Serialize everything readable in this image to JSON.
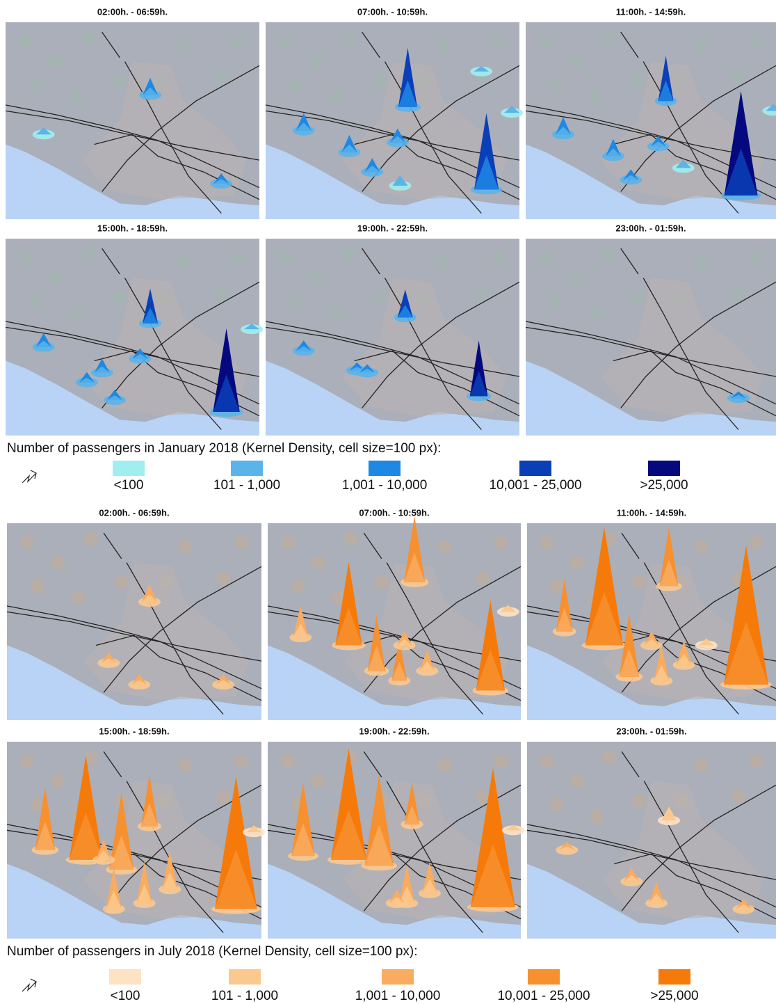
{
  "sections": [
    {
      "panels": [
        "02:00h. - 06:59h.",
        "07:00h. - 10:59h.",
        "11:00h. - 14:59h.",
        "15:00h. - 18:59h.",
        "19:00h. - 22:59h.",
        "23:00h. - 01:59h."
      ],
      "legend": {
        "title": "Number of passengers in January 2018 (Kernel Density, cell size=100 px):",
        "items": [
          {
            "label": "<100",
            "color": "#a0eef0"
          },
          {
            "label": "101 - 1,000",
            "color": "#5ab4ea"
          },
          {
            "label": "1,001 - 10,000",
            "color": "#1e88e5"
          },
          {
            "label": "10,001 - 25,000",
            "color": "#0b3fb8"
          },
          {
            "label": ">25,000",
            "color": "#06097e"
          }
        ]
      }
    },
    {
      "panels": [
        "02:00h. - 06:59h.",
        "07:00h. - 10:59h.",
        "11:00h. - 14:59h.",
        "15:00h. - 18:59h.",
        "19:00h. - 22:59h.",
        "23:00h. - 01:59h."
      ],
      "legend": {
        "title": "Number of passengers in July 2018 (Kernel Density, cell size=100 px):",
        "items": [
          {
            "label": "<100",
            "color": "#fde3c4"
          },
          {
            "label": "101 - 1,000",
            "color": "#fbc98f"
          },
          {
            "label": "1,001 - 10,000",
            "color": "#f9ab60"
          },
          {
            "label": "10,001 - 25,000",
            "color": "#f7902f"
          },
          {
            "label": ">25,000",
            "color": "#f67a0a"
          }
        ]
      }
    }
  ]
}
